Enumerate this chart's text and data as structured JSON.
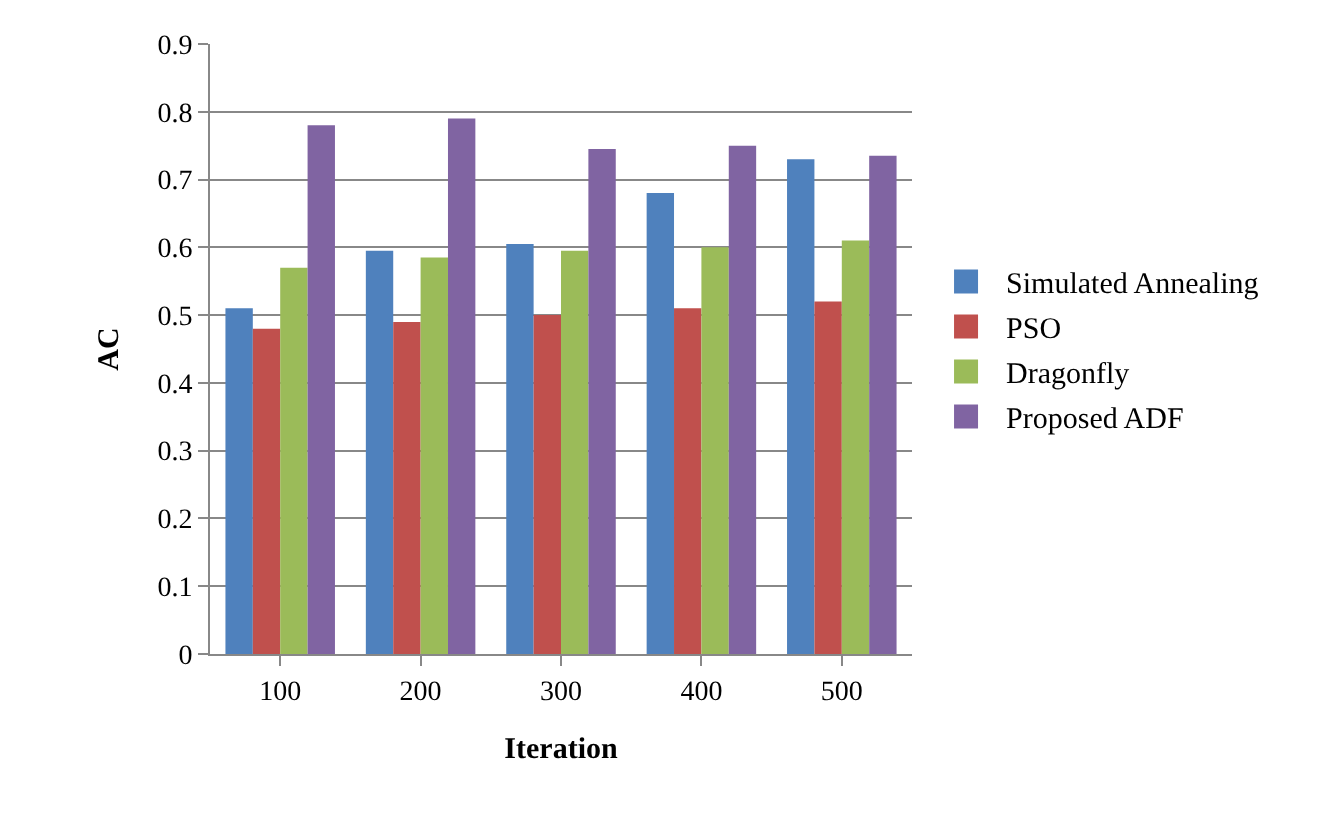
{
  "chart_data": {
    "type": "bar",
    "xlabel": "Iteration",
    "ylabel": "AC",
    "categories": [
      "100",
      "200",
      "300",
      "400",
      "500"
    ],
    "series": [
      {
        "name": "Simulated Annealing",
        "color": "#4f81bd",
        "values": [
          0.51,
          0.595,
          0.605,
          0.68,
          0.73
        ]
      },
      {
        "name": "PSO",
        "color": "#c0504d",
        "values": [
          0.48,
          0.49,
          0.5,
          0.51,
          0.52
        ]
      },
      {
        "name": "Dragonfly",
        "color": "#9bbb59",
        "values": [
          0.57,
          0.585,
          0.595,
          0.6,
          0.61
        ]
      },
      {
        "name": "Proposed ADF",
        "color": "#8064a2",
        "values": [
          0.78,
          0.79,
          0.745,
          0.75,
          0.735
        ]
      }
    ],
    "ylim": [
      0,
      0.9
    ],
    "yticks": [
      0,
      0.1,
      0.2,
      0.3,
      0.4,
      0.5,
      0.6,
      0.7,
      0.8,
      0.9
    ],
    "grid": "y",
    "legend": "right"
  }
}
